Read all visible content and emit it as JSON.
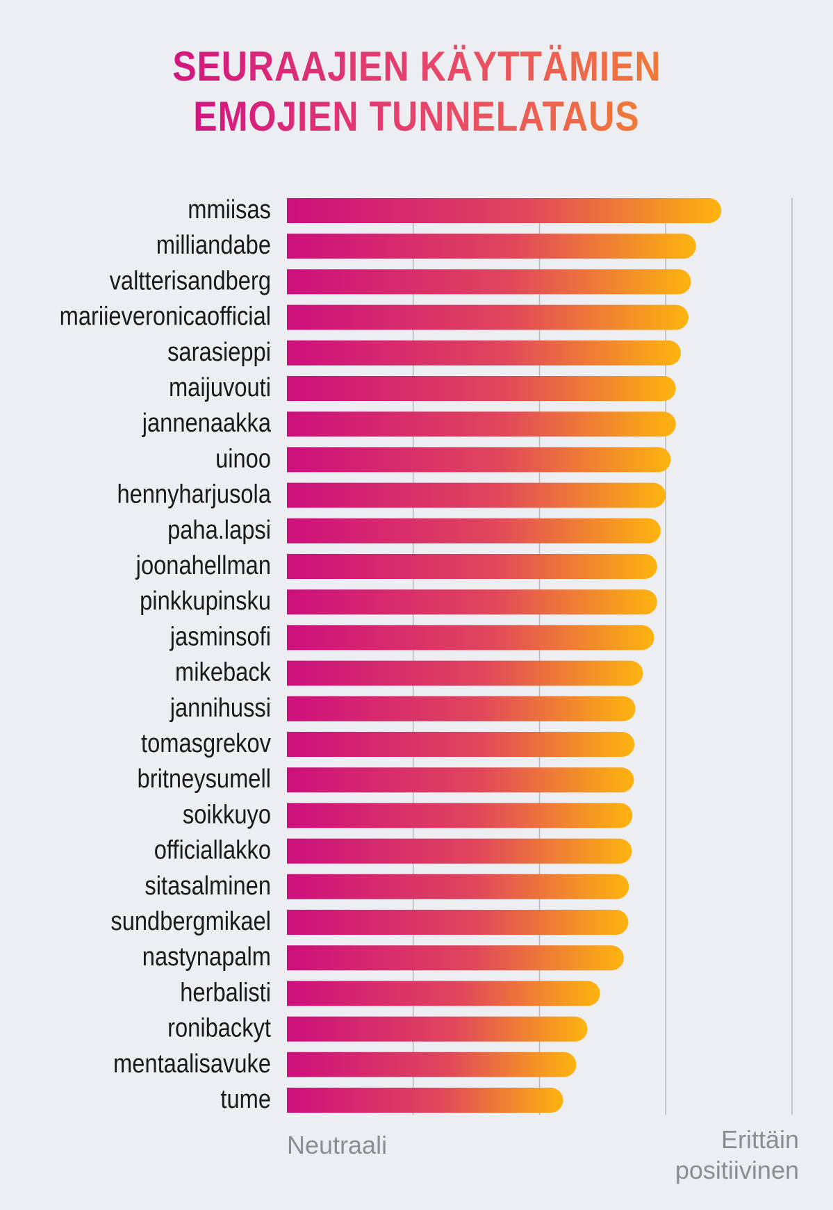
{
  "title_lines": [
    "SEURAAJIEN KÄYTTÄMIEN",
    "EMOJIEN TUNNELATAUS"
  ],
  "colors": {
    "gradient_start": "#cc0f7d",
    "gradient_mid": "#e0465c",
    "gradient_end": "#fdb40e",
    "grid": "#b4b7bc",
    "label": "#1a1a1a",
    "axis_label": "#8a8d92",
    "background": "#eceef2"
  },
  "chart_data": {
    "type": "bar",
    "orientation": "horizontal",
    "title": "SEURAAJIEN KÄYTTÄMIEN EMOJIEN TUNNELATAUS",
    "categories": [
      "mmiisas",
      "milliandabe",
      "valtterisandberg",
      "mariieveronicaofficial",
      "sarasieppi",
      "maijuvouti",
      "jannenaakka",
      "uinoo",
      "hennyharjusola",
      "paha.lapsi",
      "joonahellman",
      "pinkkupinsku",
      "jasminsofi",
      "mikeback",
      "jannihussi",
      "tomasgrekov",
      "britneysumell",
      "soikkuyo",
      "officiallakko",
      "sitasalminen",
      "sundbergmikael",
      "nastynapalm",
      "herbalisti",
      "ronibackyt",
      "mentaalisavuke",
      "tume"
    ],
    "values": [
      0.86,
      0.81,
      0.8,
      0.795,
      0.78,
      0.77,
      0.77,
      0.76,
      0.75,
      0.74,
      0.733,
      0.733,
      0.727,
      0.705,
      0.69,
      0.688,
      0.687,
      0.684,
      0.683,
      0.677,
      0.676,
      0.667,
      0.62,
      0.595,
      0.573,
      0.547
    ],
    "xlim": [
      0,
      1
    ],
    "x_tick_labels": [
      {
        "value": 0,
        "label": "Neutraali"
      },
      {
        "value": 1,
        "label_lines": [
          "Erittäin",
          "positiivinen"
        ]
      }
    ],
    "gridlines": [
      0.25,
      0.5,
      0.75,
      1.0
    ],
    "grid": true,
    "legend": "none"
  }
}
